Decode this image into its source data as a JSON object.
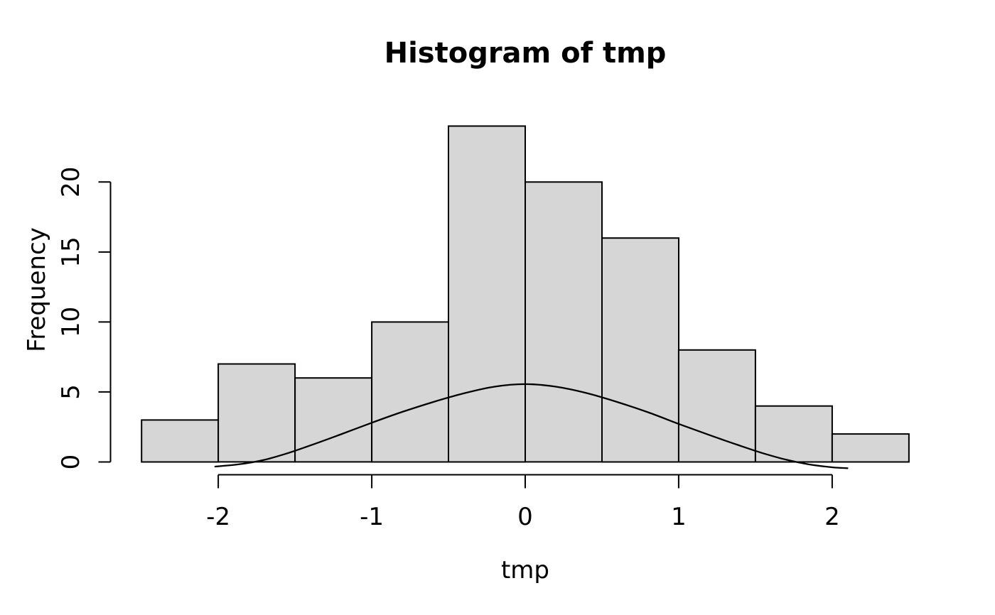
{
  "figure": {
    "background": "#ffffff"
  },
  "chart_data": {
    "type": "histogram",
    "title": "Histogram of tmp",
    "xlabel": "tmp",
    "ylabel": "Frequency",
    "grid": false,
    "bin_start": -2.5,
    "bin_width": 0.5,
    "counts": [
      3,
      7,
      6,
      10,
      24,
      20,
      16,
      8,
      4,
      2
    ],
    "x_tick_values": [
      -2,
      -1,
      0,
      1,
      2
    ],
    "x_tick_labels": [
      "-2",
      "-1",
      "0",
      "1",
      "2"
    ],
    "y_tick_values": [
      0,
      5,
      10,
      15,
      20
    ],
    "y_tick_labels": [
      "0",
      "5",
      "10",
      "15",
      "20"
    ],
    "xlim": [
      -2.7,
      2.7
    ],
    "ylim": [
      -0.94,
      24.94
    ],
    "overlay_curve": {
      "shape": "bell",
      "peak_x": 0,
      "peak_value": 5.56,
      "points": [
        [
          -2.02,
          -0.33
        ],
        [
          -1.85,
          -0.15
        ],
        [
          -1.7,
          0.15
        ],
        [
          -1.55,
          0.62
        ],
        [
          -1.4,
          1.18
        ],
        [
          -1.2,
          1.98
        ],
        [
          -1.0,
          2.8
        ],
        [
          -0.8,
          3.58
        ],
        [
          -0.6,
          4.28
        ],
        [
          -0.4,
          4.9
        ],
        [
          -0.2,
          5.38
        ],
        [
          0.0,
          5.56
        ],
        [
          0.2,
          5.38
        ],
        [
          0.4,
          4.92
        ],
        [
          0.6,
          4.28
        ],
        [
          0.8,
          3.55
        ],
        [
          1.0,
          2.72
        ],
        [
          1.2,
          1.92
        ],
        [
          1.4,
          1.16
        ],
        [
          1.55,
          0.62
        ],
        [
          1.7,
          0.16
        ],
        [
          1.85,
          -0.18
        ],
        [
          2.0,
          -0.38
        ],
        [
          2.1,
          -0.45
        ]
      ]
    },
    "colors": {
      "bar_fill": "#d6d6d6",
      "bar_border": "#000000",
      "curve": "#000000",
      "axis": "#000000",
      "text": "#000000"
    }
  }
}
